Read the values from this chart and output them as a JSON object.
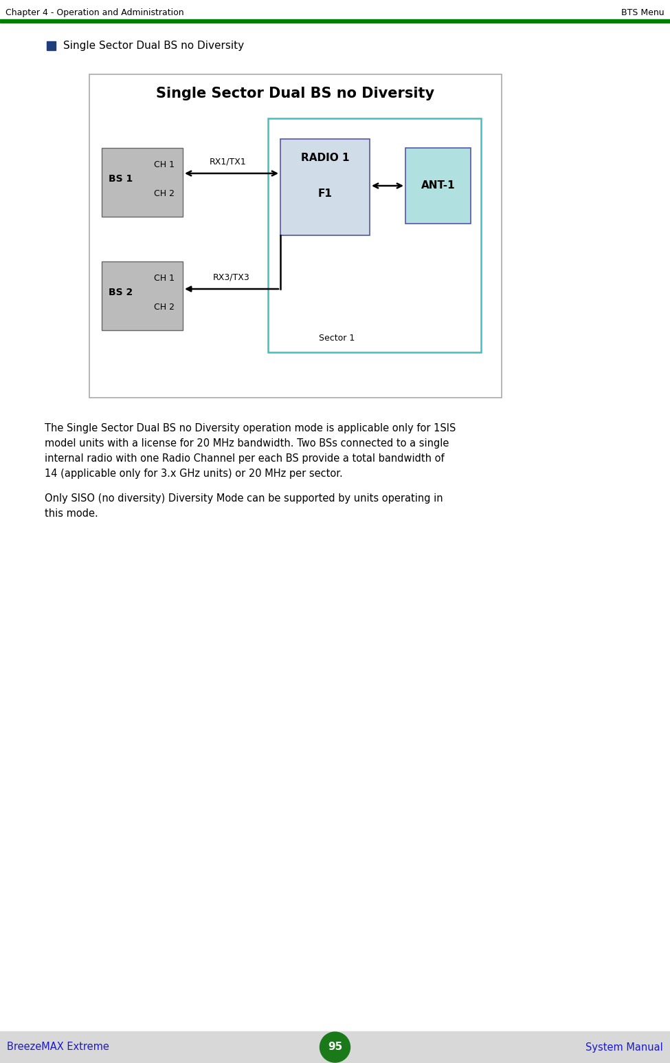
{
  "page_title_left": "Chapter 4 - Operation and Administration",
  "page_title_right": "BTS Menu",
  "header_line_color": "#008000",
  "bullet_text": "Single Sector Dual BS no Diversity",
  "bullet_color": "#1F3D7A",
  "diagram_title": "Single Sector Dual BS no Diversity",
  "diagram_bg": "#FFFFFF",
  "diagram_border": "#BBBBBB",
  "sector_box_color": "#40C0C0",
  "bs_box_color": "#BBBBBB",
  "radio_box_color": "#D0DCE8",
  "ant_box_color": "#B0E0E0",
  "body_text_1": "The Single Sector Dual BS no Diversity operation mode is applicable only for 1SIS",
  "body_text_2": "model units with a license for 20 MHz bandwidth. Two BSs connected to a single",
  "body_text_3": "internal radio with one Radio Channel per each BS provide a total bandwidth of",
  "body_text_4": "14 (applicable only for 3.x GHz units) or 20 MHz per sector.",
  "body_text_5": "Only SISO (no diversity) Diversity Mode can be supported by units operating in",
  "body_text_6": "this mode.",
  "footer_left": "BreezeMAX Extreme",
  "footer_center": "95",
  "footer_right": "System Manual",
  "footer_bg": "#D8D8D8",
  "footer_circle_color": "#1A7A1A",
  "footer_text_color": "#1A1ACC",
  "body_font_color": "#000000"
}
